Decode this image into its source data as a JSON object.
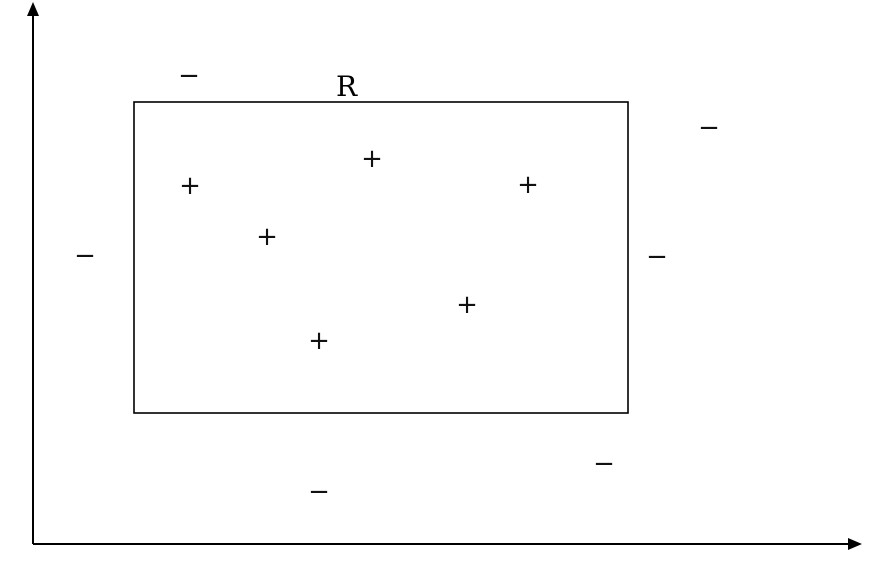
{
  "region": {
    "label": "R"
  },
  "marks": {
    "positive_symbol": "+",
    "negative_symbol": "−"
  },
  "positive_points": [
    {
      "id": "p1"
    },
    {
      "id": "p2"
    },
    {
      "id": "p3"
    },
    {
      "id": "p4"
    },
    {
      "id": "p5"
    },
    {
      "id": "p6"
    }
  ],
  "negative_points": [
    {
      "id": "n1"
    },
    {
      "id": "n2"
    },
    {
      "id": "n3"
    },
    {
      "id": "n4"
    },
    {
      "id": "n5"
    },
    {
      "id": "n6"
    }
  ],
  "colors": {
    "ink": "#000000",
    "background": "#ffffff"
  }
}
